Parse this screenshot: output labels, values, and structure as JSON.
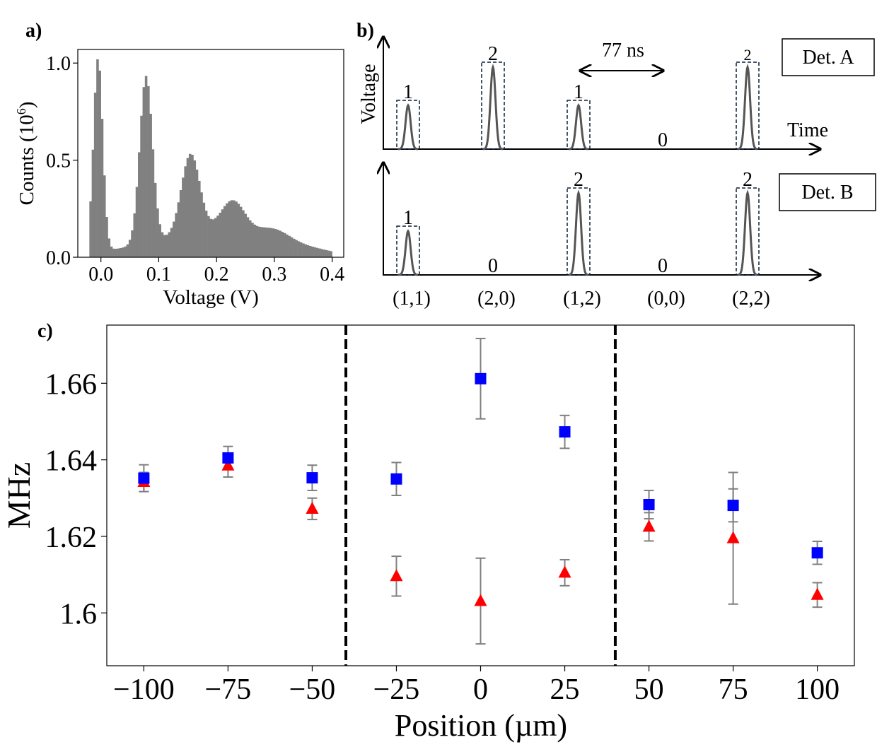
{
  "panel_labels": {
    "a": "a)",
    "b": "b)",
    "c": "c)"
  },
  "colors": {
    "bar": "#808080",
    "pulse": "#555555",
    "blue": "#0000ff",
    "red": "#ff0000",
    "errbar": "#808080",
    "axis": "#000000"
  },
  "chart_data": [
    {
      "id": "a",
      "type": "bar",
      "xlabel": "Voltage (V)",
      "ylabel_main": "Counts (10",
      "ylabel_sup": "6",
      "ylabel_end": ")",
      "xlim": [
        -0.04,
        0.42
      ],
      "ylim": [
        0.0,
        1.07
      ],
      "xticks": [
        {
          "v": 0.0,
          "label": "0.0"
        },
        {
          "v": 0.1,
          "label": "0.1"
        },
        {
          "v": 0.2,
          "label": "0.2"
        },
        {
          "v": 0.3,
          "label": "0.3"
        },
        {
          "v": 0.4,
          "label": "0.4"
        }
      ],
      "yticks": [
        {
          "v": 0.0,
          "label": "0.0"
        },
        {
          "v": 0.5,
          "label": "0.5"
        },
        {
          "v": 1.0,
          "label": "1.0"
        }
      ],
      "bin_width": 0.004,
      "peaks": [
        {
          "center": -0.005,
          "height": 1.0,
          "sigma": 0.008
        },
        {
          "center": 0.078,
          "height": 0.86,
          "sigma": 0.011
        },
        {
          "center": 0.155,
          "height": 0.42,
          "sigma": 0.016
        },
        {
          "center": 0.228,
          "height": 0.17,
          "sigma": 0.021
        },
        {
          "center": 0.3,
          "height": 0.05,
          "sigma": 0.026
        }
      ],
      "baseline": [
        [
          -0.02,
          0.02
        ],
        [
          0.04,
          0.05
        ],
        [
          0.12,
          0.1
        ],
        [
          0.2,
          0.13
        ],
        [
          0.28,
          0.11
        ],
        [
          0.34,
          0.07
        ],
        [
          0.4,
          0.03
        ]
      ],
      "x_start": -0.02,
      "x_end": 0.4
    },
    {
      "id": "b",
      "type": "pulse-diagram",
      "axis_ylabel": "Voltage",
      "axis_xlabel": "Time",
      "interval_label": "77 ns",
      "det_a_label": "Det. A",
      "det_b_label": "Det. B",
      "slots": [
        {
          "label": "(1,1)",
          "a": 1,
          "b": 1,
          "a_text": "1",
          "b_text": "1"
        },
        {
          "label": "(2,0)",
          "a": 2,
          "b": 0,
          "a_text": "2",
          "b_text": "0"
        },
        {
          "label": "(1,2)",
          "a": 1,
          "b": 2,
          "a_text": "1",
          "b_text": "2"
        },
        {
          "label": "(0,0)",
          "a": 0,
          "b": 0,
          "a_text": "0",
          "b_text": "0"
        },
        {
          "label": "(2,2)",
          "a": 2,
          "b": 2,
          "a_text": "2",
          "b_text": "2"
        }
      ]
    },
    {
      "id": "c",
      "type": "scatter",
      "xlabel": "Position (µm)",
      "ylabel": "MHz",
      "xlim": [
        -111,
        111
      ],
      "ylim": [
        1.5862,
        1.6752
      ],
      "xticks": [
        {
          "v": -100,
          "label": "−100"
        },
        {
          "v": -75,
          "label": "−75"
        },
        {
          "v": -50,
          "label": "−50"
        },
        {
          "v": -25,
          "label": "−25"
        },
        {
          "v": 0,
          "label": "0"
        },
        {
          "v": 25,
          "label": "25"
        },
        {
          "v": 50,
          "label": "50"
        },
        {
          "v": 75,
          "label": "75"
        },
        {
          "v": 100,
          "label": "100"
        }
      ],
      "yticks": [
        {
          "v": 1.6,
          "label": "1.6"
        },
        {
          "v": 1.62,
          "label": "1.62"
        },
        {
          "v": 1.64,
          "label": "1.64"
        },
        {
          "v": 1.66,
          "label": "1.66"
        }
      ],
      "dividers": [
        -40,
        40
      ],
      "series": [
        {
          "name": "blue squares",
          "marker": "square",
          "color": "#0000ff",
          "points": [
            {
              "x": -100,
              "y": 1.6352,
              "err": 0.0035
            },
            {
              "x": -75,
              "y": 1.6405,
              "err": 0.003
            },
            {
              "x": -50,
              "y": 1.6353,
              "err": 0.0033
            },
            {
              "x": -25,
              "y": 1.635,
              "err": 0.0043
            },
            {
              "x": 0,
              "y": 1.6612,
              "err": 0.0105
            },
            {
              "x": 25,
              "y": 1.6473,
              "err": 0.0043
            },
            {
              "x": 50,
              "y": 1.6283,
              "err": 0.0037
            },
            {
              "x": 75,
              "y": 1.6281,
              "err": 0.0043
            },
            {
              "x": 100,
              "y": 1.6157,
              "err": 0.003
            }
          ]
        },
        {
          "name": "red triangles",
          "marker": "triangle",
          "color": "#ff0000",
          "points": [
            {
              "x": -100,
              "y": 1.6342,
              "err": 0.0025
            },
            {
              "x": -75,
              "y": 1.6385,
              "err": 0.003
            },
            {
              "x": -50,
              "y": 1.6272,
              "err": 0.0028
            },
            {
              "x": -25,
              "y": 1.6096,
              "err": 0.0052
            },
            {
              "x": 0,
              "y": 1.6031,
              "err": 0.0112
            },
            {
              "x": 25,
              "y": 1.6105,
              "err": 0.0034
            },
            {
              "x": 50,
              "y": 1.6225,
              "err": 0.0037
            },
            {
              "x": 75,
              "y": 1.6195,
              "err": 0.0172
            },
            {
              "x": 100,
              "y": 1.6047,
              "err": 0.0032
            }
          ]
        }
      ]
    }
  ]
}
